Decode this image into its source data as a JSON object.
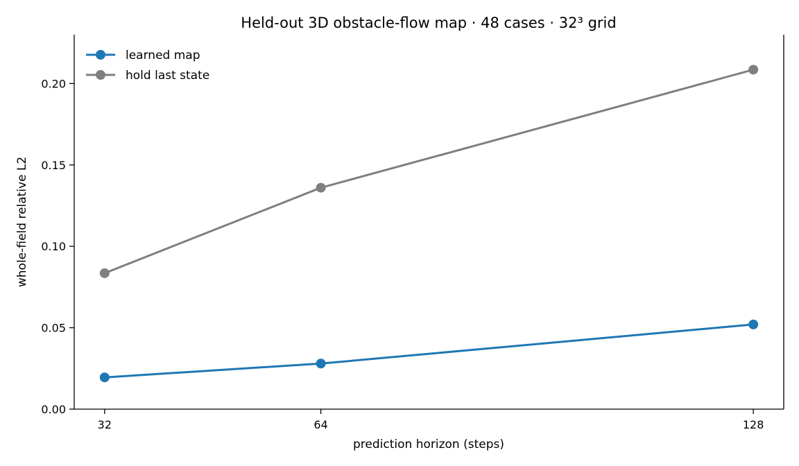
{
  "chart_data": {
    "type": "line",
    "title": "Held-out 3D obstacle-flow map · 48 cases · 32³ grid",
    "xlabel": "prediction horizon (steps)",
    "ylabel": "whole-field relative L2",
    "x": [
      32,
      64,
      128
    ],
    "x_tick_labels": [
      "32",
      "64",
      "128"
    ],
    "xlim": [
      27.5,
      132.5
    ],
    "ylim": [
      0,
      0.23
    ],
    "y_ticks": [
      0.0,
      0.05,
      0.1,
      0.15,
      0.2
    ],
    "y_tick_labels": [
      "0.00",
      "0.05",
      "0.10",
      "0.15",
      "0.20"
    ],
    "grid": false,
    "legend_position": "top-left",
    "series": [
      {
        "name": "learned map",
        "color": "#1f77b4",
        "values": [
          0.0195,
          0.028,
          0.052
        ]
      },
      {
        "name": "hold last state",
        "color": "#7f7f7f",
        "values": [
          0.0835,
          0.136,
          0.2085
        ]
      }
    ]
  }
}
